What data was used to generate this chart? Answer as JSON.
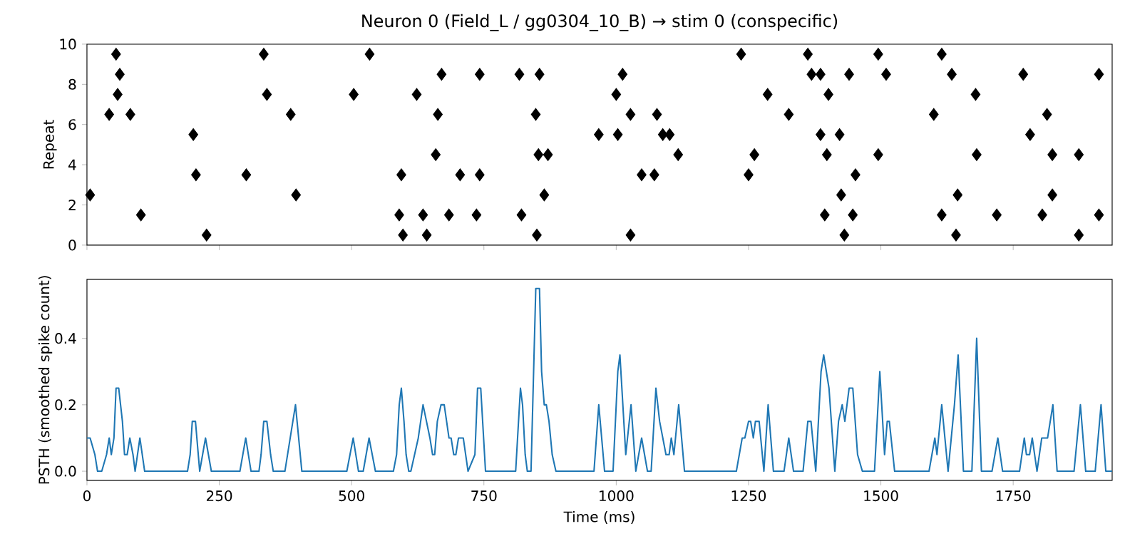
{
  "chart_data": [
    {
      "type": "scatter",
      "title": "Neuron 0 (Field_L / gg0304_10_B) → stim 0 (conspecific)",
      "ylabel": "Repeat",
      "color": "#000000",
      "tick_labels": "y",
      "marker": "diamond",
      "xlim": [
        0,
        1937
      ],
      "xticks": [
        0,
        250,
        500,
        750,
        1000,
        1250,
        1500,
        1750
      ],
      "ylim": [
        0,
        10
      ],
      "yticks": [
        0,
        2,
        4,
        6,
        8,
        10
      ],
      "x": [
        55,
        62,
        58,
        42,
        82,
        6,
        102,
        334,
        340,
        385,
        201,
        206,
        301,
        395,
        226,
        534,
        504,
        623,
        670,
        742,
        817,
        855,
        663,
        848,
        659,
        853,
        871,
        594,
        705,
        742,
        864,
        590,
        635,
        684,
        736,
        821,
        597,
        642,
        850,
        967,
        1012,
        1000,
        1003,
        1027,
        1077,
        1088,
        1101,
        1117,
        1048,
        1072,
        1027,
        1236,
        1286,
        1326,
        1250,
        1261,
        1362,
        1369,
        1386,
        1401,
        1440,
        1386,
        1422,
        1398,
        1452,
        1425,
        1394,
        1447,
        1431,
        1495,
        1510,
        1495,
        1615,
        1634,
        1679,
        1600,
        1681,
        1645,
        1615,
        1719,
        1642,
        1769,
        1912,
        1814,
        1782,
        1824,
        1874,
        1824,
        1805,
        1912,
        1874
      ],
      "values": [
        9.5,
        8.5,
        7.5,
        6.5,
        6.5,
        2.5,
        1.5,
        9.5,
        7.5,
        6.5,
        5.5,
        3.5,
        3.5,
        2.5,
        0.5,
        9.5,
        7.5,
        7.5,
        8.5,
        8.5,
        8.5,
        8.5,
        6.5,
        6.5,
        4.5,
        4.5,
        4.5,
        3.5,
        3.5,
        3.5,
        2.5,
        1.5,
        1.5,
        1.5,
        1.5,
        1.5,
        0.5,
        0.5,
        0.5,
        5.5,
        8.5,
        7.5,
        5.5,
        6.5,
        6.5,
        5.5,
        5.5,
        4.5,
        3.5,
        3.5,
        0.5,
        9.5,
        7.5,
        6.5,
        3.5,
        4.5,
        9.5,
        8.5,
        8.5,
        7.5,
        8.5,
        5.5,
        5.5,
        4.5,
        3.5,
        2.5,
        1.5,
        1.5,
        0.5,
        9.5,
        8.5,
        4.5,
        9.5,
        8.5,
        7.5,
        6.5,
        4.5,
        2.5,
        1.5,
        1.5,
        0.5,
        8.5,
        8.5,
        6.5,
        5.5,
        4.5,
        4.5,
        2.5,
        1.5,
        1.5,
        0.5
      ]
    },
    {
      "type": "line",
      "xlabel": "Time (ms)",
      "ylabel": "PSTH (smoothed spike count)",
      "color": "#1f77b4",
      "xlim": [
        0,
        1937
      ],
      "xticks": [
        0,
        250,
        500,
        750,
        1000,
        1250,
        1500,
        1750
      ],
      "ylim": [
        -0.0275,
        0.5775
      ],
      "yticks": [
        {
          "value": 0,
          "label": "0.0"
        },
        {
          "value": 0.2,
          "label": "0.2"
        },
        {
          "value": 0.4,
          "label": "0.4"
        }
      ],
      "x": [
        0,
        6,
        15,
        20,
        28,
        37,
        42,
        46,
        51,
        55,
        60,
        67,
        71,
        76,
        81,
        87,
        91,
        100,
        109,
        190,
        195,
        199,
        205,
        213,
        224,
        235,
        289,
        300,
        310,
        325,
        329,
        334,
        340,
        347,
        352,
        374,
        394,
        406,
        491,
        503,
        513,
        522,
        533,
        545,
        579,
        585,
        590,
        594,
        599,
        603,
        608,
        612,
        626,
        635,
        648,
        653,
        657,
        662,
        669,
        675,
        684,
        688,
        693,
        697,
        702,
        711,
        720,
        733,
        738,
        744,
        753,
        810,
        819,
        823,
        828,
        832,
        839,
        848,
        855,
        859,
        864,
        868,
        873,
        879,
        886,
        958,
        967,
        978,
        994,
        1003,
        1007,
        1018,
        1028,
        1037,
        1048,
        1059,
        1066,
        1075,
        1082,
        1094,
        1100,
        1104,
        1109,
        1118,
        1129,
        1227,
        1238,
        1243,
        1250,
        1254,
        1259,
        1263,
        1270,
        1279,
        1287,
        1297,
        1317,
        1326,
        1335,
        1353,
        1362,
        1368,
        1377,
        1387,
        1392,
        1402,
        1413,
        1420,
        1427,
        1432,
        1440,
        1447,
        1456,
        1465,
        1488,
        1498,
        1507,
        1512,
        1516,
        1526,
        1591,
        1602,
        1606,
        1615,
        1627,
        1639,
        1646,
        1656,
        1672,
        1681,
        1690,
        1710,
        1721,
        1730,
        1762,
        1771,
        1775,
        1781,
        1786,
        1795,
        1804,
        1815,
        1825,
        1833,
        1865,
        1877,
        1887,
        1905,
        1916,
        1925,
        1937
      ],
      "values": [
        0.1,
        0.1,
        0.05,
        0,
        0,
        0.05,
        0.1,
        0.05,
        0.1,
        0.25,
        0.25,
        0.15,
        0.05,
        0.05,
        0.1,
        0.05,
        0,
        0.1,
        0,
        0,
        0.05,
        0.15,
        0.15,
        0,
        0.1,
        0,
        0,
        0.1,
        0,
        0,
        0.05,
        0.15,
        0.15,
        0.05,
        0,
        0,
        0.2,
        0,
        0,
        0.1,
        0,
        0,
        0.1,
        0,
        0,
        0.05,
        0.2,
        0.25,
        0.15,
        0.05,
        0,
        0,
        0.1,
        0.2,
        0.1,
        0.05,
        0.05,
        0.15,
        0.2,
        0.2,
        0.1,
        0.1,
        0.05,
        0.05,
        0.1,
        0.1,
        0,
        0.05,
        0.25,
        0.25,
        0,
        0,
        0.25,
        0.2,
        0.05,
        0,
        0,
        0.55,
        0.55,
        0.3,
        0.2,
        0.2,
        0.15,
        0.05,
        0,
        0,
        0.2,
        0,
        0,
        0.3,
        0.35,
        0.05,
        0.2,
        0,
        0.1,
        0,
        0,
        0.25,
        0.15,
        0.05,
        0.05,
        0.1,
        0.05,
        0.2,
        0,
        0,
        0.1,
        0.1,
        0.15,
        0.15,
        0.1,
        0.15,
        0.15,
        0,
        0.2,
        0,
        0,
        0.1,
        0,
        0,
        0.15,
        0.15,
        0,
        0.3,
        0.35,
        0.25,
        0,
        0.15,
        0.2,
        0.15,
        0.25,
        0.25,
        0.05,
        0,
        0,
        0.3,
        0.05,
        0.15,
        0.15,
        0,
        0,
        0.1,
        0.05,
        0.2,
        0,
        0.2,
        0.35,
        0,
        0,
        0.4,
        0,
        0,
        0.1,
        0,
        0,
        0.1,
        0.05,
        0.05,
        0.1,
        0,
        0.1,
        0.1,
        0.2,
        0,
        0,
        0.2,
        0,
        0,
        0.2,
        0,
        0
      ]
    }
  ]
}
